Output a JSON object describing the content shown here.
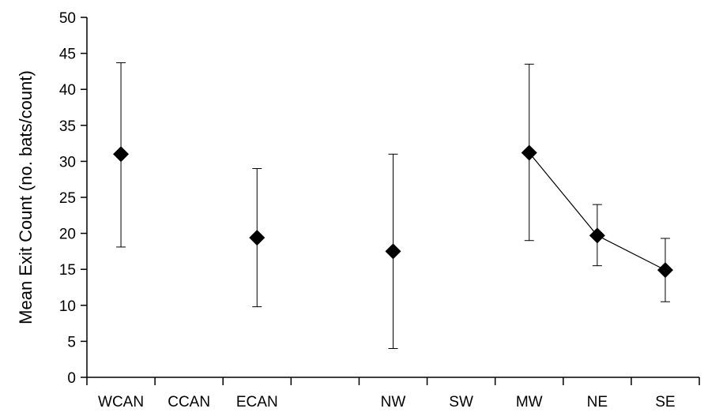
{
  "colors": {
    "background": "#ffffff",
    "axis": "#000000",
    "marker": "#000000",
    "errorbar": "#000000",
    "line": "#000000"
  },
  "chart_data": {
    "type": "scatter",
    "title": "",
    "xlabel": "",
    "ylabel": "Mean Exit Count (no. bats/count)",
    "ylim": [
      0,
      50
    ],
    "yticks": [
      0,
      5,
      10,
      15,
      20,
      25,
      30,
      35,
      40,
      45,
      50
    ],
    "grid": false,
    "legend": "none",
    "marker": "diamond",
    "categories": [
      "WCAN",
      "CCAN",
      "ECAN",
      "",
      "NW",
      "SW",
      "MW",
      "NE",
      "SE"
    ],
    "points": [
      {
        "category": "WCAN",
        "value": 31.0,
        "err_low": 18.1,
        "err_high": 43.7
      },
      {
        "category": "ECAN",
        "value": 19.4,
        "err_low": 9.8,
        "err_high": 29.0
      },
      {
        "category": "NW",
        "value": 17.5,
        "err_low": 4.0,
        "err_high": 31.0
      },
      {
        "category": "MW",
        "value": 31.2,
        "err_low": 19.0,
        "err_high": 43.5
      },
      {
        "category": "NE",
        "value": 19.7,
        "err_low": 15.5,
        "err_high": 24.0
      },
      {
        "category": "SE",
        "value": 14.9,
        "err_low": 10.5,
        "err_high": 19.3
      }
    ],
    "connected": [
      "MW",
      "NE",
      "SE"
    ]
  }
}
